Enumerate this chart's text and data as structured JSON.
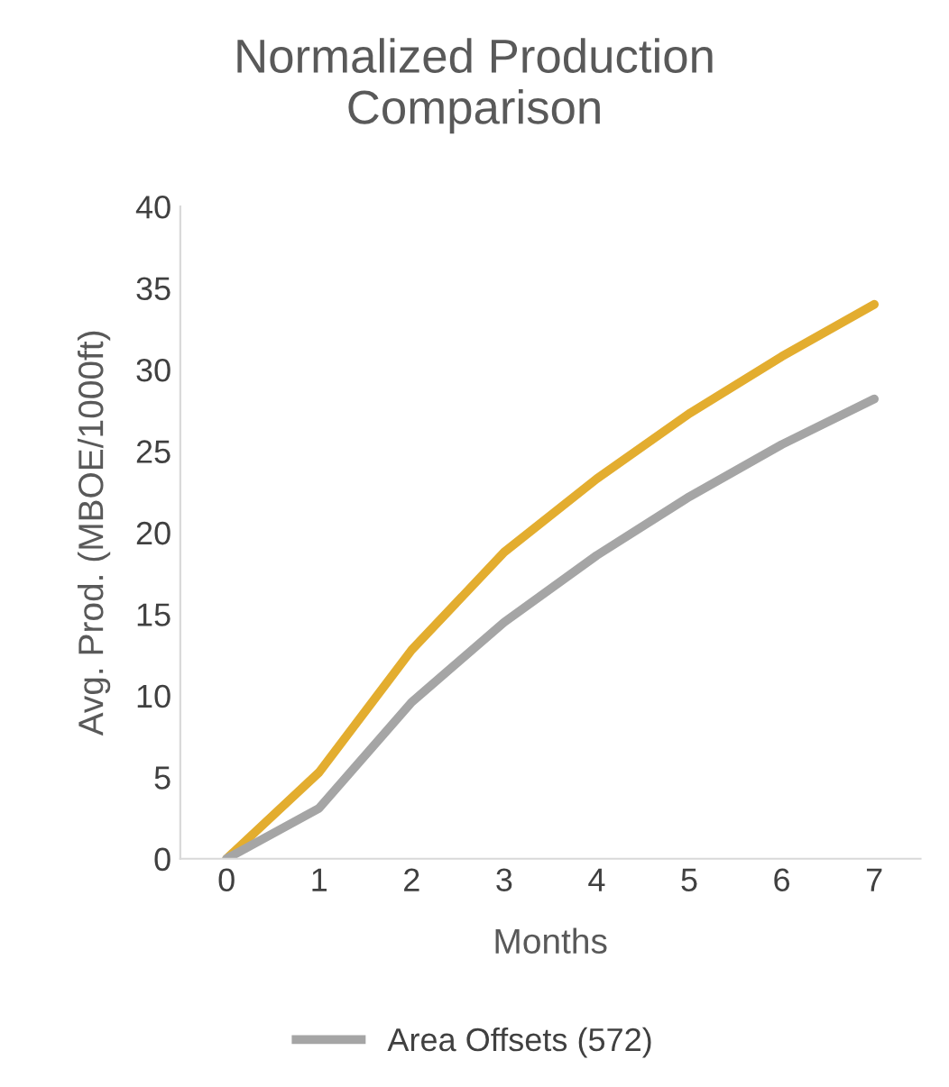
{
  "chart_data": {
    "type": "line",
    "title": "Normalized Production\nComparison",
    "xlabel": "Months",
    "ylabel": "Avg. Prod. (MBOE/1000ft)",
    "categories": [
      "0",
      "1",
      "2",
      "3",
      "4",
      "5",
      "6",
      "7"
    ],
    "series": [
      {
        "color": "#e3ad2f",
        "values": [
          0,
          5.3,
          12.8,
          18.8,
          23.3,
          27.3,
          30.8,
          34.0
        ]
      },
      {
        "name": "Area Offsets (572)",
        "color": "#a5a5a5",
        "values": [
          0,
          3.1,
          9.6,
          14.5,
          18.6,
          22.2,
          25.4,
          28.2
        ]
      }
    ],
    "ylim": [
      0,
      40
    ],
    "yticks": [
      0,
      5,
      10,
      15,
      20,
      25,
      30,
      35,
      40
    ],
    "grid": false,
    "legend": "bottom",
    "marker": "none",
    "line_style": "solid"
  }
}
